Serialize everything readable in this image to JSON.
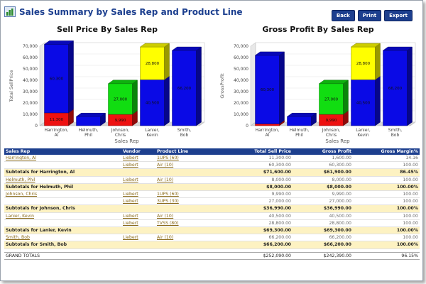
{
  "title": "Sales Summary by Sales Rep and Product Line",
  "buttons": {
    "back": "Back",
    "print": "Print",
    "export": "Export"
  },
  "charts": [
    {
      "title": "Sell Price By Sales Rep",
      "ylabel": "Total SellPrice",
      "xlabel": "Sales Rep",
      "yticks": [
        "70,000",
        "60,000",
        "50,000",
        "40,000",
        "30,000",
        "20,000",
        "10,000",
        "0"
      ],
      "chart_data": {
        "type": "bar",
        "categories": [
          "Harrington, Al",
          "Helmuth, Phil",
          "Johnson, Chris",
          "Lanier, Kevin",
          "Smith, Bob"
        ],
        "ylim": [
          0,
          70000
        ],
        "series": [
          {
            "color": "#ee1111",
            "values": [
              11300,
              0,
              9990,
              0,
              0
            ],
            "labels": [
              "11,300",
              "",
              "9,990",
              "",
              ""
            ]
          },
          {
            "color": "#0a0ae6",
            "values": [
              60300,
              8000,
              0,
              40500,
              66200
            ],
            "labels": [
              "60,300",
              "",
              "",
              "40,500",
              "66,200"
            ]
          },
          {
            "color": "#11dd11",
            "values": [
              0,
              0,
              27000,
              0,
              0
            ],
            "labels": [
              "",
              "",
              "27,000",
              "",
              ""
            ]
          },
          {
            "color": "#ffff00",
            "values": [
              0,
              0,
              0,
              28800,
              0
            ],
            "labels": [
              "",
              "",
              "",
              "28,800",
              ""
            ]
          }
        ]
      }
    },
    {
      "title": "Gross Profit By Sales Rep",
      "ylabel": "GrossProfit",
      "xlabel": "Sales Rep",
      "yticks": [
        "70,000",
        "60,000",
        "50,000",
        "40,000",
        "30,000",
        "20,000",
        "10,000",
        "0"
      ],
      "chart_data": {
        "type": "bar",
        "categories": [
          "Harrington, Al",
          "Helmuth, Phil",
          "Johnson, Chris",
          "Lanier, Kevin",
          "Smith, Bob"
        ],
        "ylim": [
          0,
          70000
        ],
        "series": [
          {
            "color": "#ee1111",
            "values": [
              1600,
              0,
              9990,
              0,
              0
            ],
            "labels": [
              "",
              "",
              "9,990",
              "",
              ""
            ]
          },
          {
            "color": "#0a0ae6",
            "values": [
              60300,
              8000,
              0,
              40500,
              66200
            ],
            "labels": [
              "60,300",
              "",
              "",
              "40,500",
              "66,200"
            ]
          },
          {
            "color": "#11dd11",
            "values": [
              0,
              0,
              27000,
              0,
              0
            ],
            "labels": [
              "",
              "",
              "27,000",
              "",
              ""
            ]
          },
          {
            "color": "#ffff00",
            "values": [
              0,
              0,
              0,
              28800,
              0
            ],
            "labels": [
              "",
              "",
              "",
              "28,800",
              ""
            ]
          }
        ]
      }
    }
  ],
  "table": {
    "columns": [
      "Sales Rep",
      "Vendor",
      "Product Line",
      "Total Sell Price",
      "Gross Profit",
      "Gross Margin%"
    ],
    "rows": [
      {
        "type": "detail",
        "rep": "Harrington, Al",
        "vendor": "Liebert",
        "product": "1UPS (60)",
        "sell": "11,300.00",
        "profit": "1,600.00",
        "margin": "14.16"
      },
      {
        "type": "detail",
        "rep": "",
        "vendor": "Liebert",
        "product": "Air (10)",
        "sell": "60,300.00",
        "profit": "60,300.00",
        "margin": "100.00"
      },
      {
        "type": "sub",
        "label": "Subtotals for Harrington, Al",
        "sell": "$71,600.00",
        "profit": "$61,900.00",
        "margin": "86.45%"
      },
      {
        "type": "detail",
        "rep": "Helmuth, Phil",
        "vendor": "Liebert",
        "product": "Air (10)",
        "sell": "8,000.00",
        "profit": "8,000.00",
        "margin": "100.00"
      },
      {
        "type": "sub",
        "label": "Subtotals for Helmuth, Phil",
        "sell": "$8,000.00",
        "profit": "$8,000.00",
        "margin": "100.00%"
      },
      {
        "type": "detail",
        "rep": "Johnson, Chris",
        "vendor": "Liebert",
        "product": "1UPS (60)",
        "sell": "9,990.00",
        "profit": "9,990.00",
        "margin": "100.00"
      },
      {
        "type": "detail",
        "rep": "",
        "vendor": "Liebert",
        "product": "3UPS (30)",
        "sell": "27,000.00",
        "profit": "27,000.00",
        "margin": "100.00"
      },
      {
        "type": "sub",
        "label": "Subtotals for Johnson, Chris",
        "sell": "$36,990.00",
        "profit": "$36,990.00",
        "margin": "100.00%"
      },
      {
        "type": "detail",
        "rep": "Lanier, Kevin",
        "vendor": "Liebert",
        "product": "Air (10)",
        "sell": "40,500.00",
        "profit": "40,500.00",
        "margin": "100.00"
      },
      {
        "type": "detail",
        "rep": "",
        "vendor": "Liebert",
        "product": "TVSS (80)",
        "sell": "28,800.00",
        "profit": "28,800.00",
        "margin": "100.00"
      },
      {
        "type": "sub",
        "label": "Subtotals for Lanier, Kevin",
        "sell": "$69,300.00",
        "profit": "$69,300.00",
        "margin": "100.00%"
      },
      {
        "type": "detail",
        "rep": "Smith, Bob",
        "vendor": "Liebert",
        "product": "Air (10)",
        "sell": "66,200.00",
        "profit": "66,200.00",
        "margin": "100.00"
      },
      {
        "type": "sub",
        "label": "Subtotals for Smith, Bob",
        "sell": "$66,200.00",
        "profit": "$66,200.00",
        "margin": "100.00%"
      },
      {
        "type": "spacer"
      },
      {
        "type": "total",
        "label": "GRAND TOTALS",
        "sell": "$252,090.00",
        "profit": "$242,390.00",
        "margin": "96.15%"
      }
    ]
  }
}
